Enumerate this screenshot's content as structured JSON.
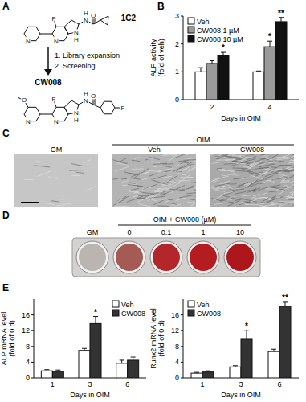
{
  "panels": {
    "labels": [
      "A",
      "B",
      "C",
      "D",
      "E"
    ],
    "A": {
      "compound_1": "1C2",
      "steps": [
        "1. Library expansion",
        "2. Screening"
      ],
      "compound_2": "CW008",
      "atoms_1": [
        "F",
        "N",
        "N",
        "N",
        "H",
        "N",
        "H",
        "O"
      ],
      "atoms_2": [
        "O",
        "F",
        "N",
        "N",
        "N",
        "H",
        "N",
        "H",
        "O",
        "F"
      ]
    },
    "C": {
      "images": [
        "GM",
        "Veh",
        "CW008"
      ],
      "group": "OIM"
    },
    "D": {
      "header": "OIM + CW008 (µM)",
      "wells": [
        "GM",
        "0",
        "0.1",
        "1",
        "10"
      ],
      "well_colors": [
        "#bab5b0",
        "#a65a55",
        "#b3262a",
        "#b51c20",
        "#ad171b"
      ]
    }
  },
  "chart_data": [
    {
      "type": "bar",
      "y_label": [
        "ALP activity",
        "(fold of veh)"
      ],
      "x_label": "Days in OIM",
      "categories": [
        "2",
        "4"
      ],
      "series": [
        {
          "name": "Veh",
          "color": "#ffffff",
          "values": [
            1.0,
            1.0
          ],
          "errors": [
            0.15,
            0.03
          ],
          "significance": [
            null,
            null
          ]
        },
        {
          "name": "CW008 1 µM",
          "color": "#9a9a9a",
          "values": [
            1.3,
            1.9
          ],
          "errors": [
            0.1,
            0.2
          ],
          "significance": [
            null,
            "*"
          ]
        },
        {
          "name": "CW008 10 µM",
          "color": "#111111",
          "values": [
            1.6,
            2.8
          ],
          "errors": [
            0.1,
            0.15
          ],
          "significance": [
            "*",
            "**"
          ]
        }
      ],
      "ylim": [
        0,
        3
      ],
      "yticks": [
        0,
        1,
        2,
        3
      ],
      "legend": "upper-left"
    },
    {
      "type": "bar",
      "y_label": [
        "ALP mRNA level",
        "(fold of 0 d)"
      ],
      "x_label": "Days in OIM",
      "categories": [
        "1",
        "3",
        "6"
      ],
      "series": [
        {
          "name": "Veh",
          "color": "#ffffff",
          "values": [
            1.8,
            7.0,
            3.7
          ],
          "errors": [
            0.3,
            0.5,
            0.8
          ],
          "significance": [
            null,
            null,
            null
          ]
        },
        {
          "name": "CW008",
          "color": "#333333",
          "values": [
            1.7,
            13.8,
            4.5
          ],
          "errors": [
            0.3,
            1.8,
            0.8
          ],
          "significance": [
            null,
            "*",
            null
          ]
        }
      ],
      "ylim": [
        0,
        20
      ],
      "yticks": [
        0,
        4,
        8,
        12,
        16
      ],
      "legend": "upper-right"
    },
    {
      "type": "bar",
      "y_label": [
        "Runx2 mRNA level",
        "(fold of 0 d)"
      ],
      "x_label": "Days in OIM",
      "categories": [
        "1",
        "3",
        "6"
      ],
      "series": [
        {
          "name": "Veh",
          "color": "#ffffff",
          "values": [
            1.2,
            2.8,
            6.7
          ],
          "errors": [
            0.2,
            0.3,
            0.6
          ],
          "significance": [
            null,
            null,
            null
          ]
        },
        {
          "name": "CW008",
          "color": "#333333",
          "values": [
            1.5,
            9.8,
            18.2
          ],
          "errors": [
            0.3,
            2.3,
            1.0
          ],
          "significance": [
            null,
            "*",
            "**"
          ]
        }
      ],
      "ylim": [
        0,
        20
      ],
      "yticks": [
        0,
        4,
        8,
        12,
        16
      ],
      "legend": "upper-left"
    }
  ]
}
